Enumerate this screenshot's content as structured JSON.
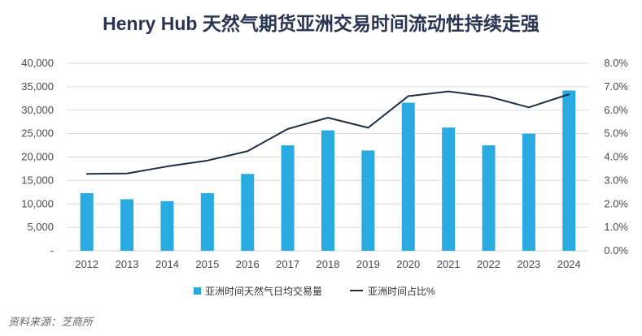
{
  "chart_data": {
    "type": "bar",
    "title": "Henry Hub 天然气期货亚洲交易时间流动性持续走强",
    "categories": [
      "2012",
      "2013",
      "2014",
      "2015",
      "2016",
      "2017",
      "2018",
      "2019",
      "2020",
      "2021",
      "2022",
      "2023",
      "2024"
    ],
    "series": [
      {
        "name": "亚洲时间天然气日均交易量",
        "type": "bar",
        "axis": "left",
        "color": "#29abe2",
        "values": [
          12300,
          11000,
          10600,
          12300,
          16400,
          22500,
          25700,
          21400,
          31600,
          26300,
          22500,
          25000,
          34200
        ]
      },
      {
        "name": "亚洲时间占比%",
        "type": "line",
        "axis": "right",
        "color": "#1f2f45",
        "values": [
          3.28,
          3.3,
          3.6,
          3.85,
          4.25,
          5.2,
          5.68,
          5.25,
          6.6,
          6.8,
          6.58,
          6.12,
          6.68
        ]
      }
    ],
    "y_left": {
      "min": 0,
      "max": 40000,
      "ticks": [
        "-",
        "5,000",
        "10,000",
        "15,000",
        "20,000",
        "25,000",
        "30,000",
        "35,000",
        "40,000"
      ]
    },
    "y_right": {
      "min": 0,
      "max": 8,
      "ticks": [
        "0.0%",
        "1.0%",
        "2.0%",
        "3.0%",
        "4.0%",
        "5.0%",
        "6.0%",
        "7.0%",
        "8.0%"
      ]
    },
    "legend_position": "bottom",
    "grid": true
  },
  "source": "资料来源：芝商所"
}
